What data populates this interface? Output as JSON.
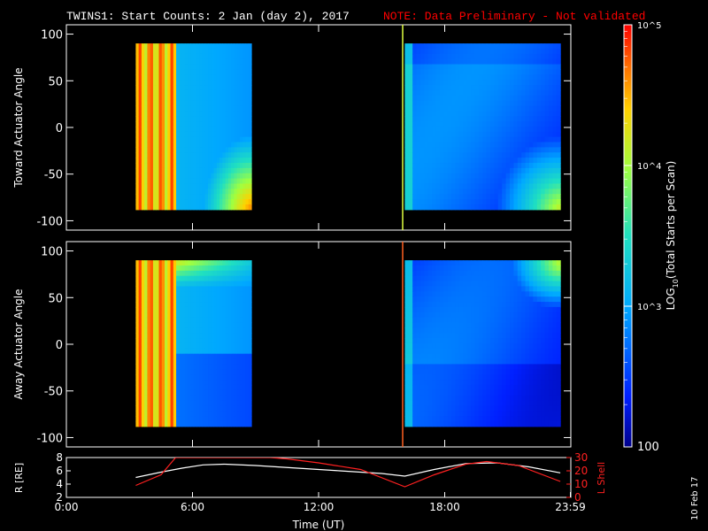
{
  "title": {
    "main": "TWINS1: Start Counts:  2 Jan (day   2), 2017",
    "note": "NOTE: Data Preliminary - Not validated",
    "note_color": "#ff0000"
  },
  "date_stamp": "10 Feb 17",
  "chart_data": [
    {
      "type": "heatmap",
      "ylabel": "Toward Actuator Angle",
      "ylim": [
        -110,
        110
      ],
      "yticks": [
        "100",
        "50",
        "0",
        "-50",
        "-100"
      ],
      "xlim": [
        0,
        24
      ],
      "data_blocks": [
        {
          "x_range": [
            3.3,
            8.8
          ],
          "y_range": [
            -88,
            90
          ],
          "pattern": "early_saturated"
        },
        {
          "x_range": [
            16.1,
            23.5
          ],
          "y_range": [
            -88,
            90
          ],
          "pattern": "late_low"
        }
      ],
      "marker_time": 16.0
    },
    {
      "type": "heatmap",
      "ylabel": "Away Actuator Angle",
      "ylim": [
        -110,
        110
      ],
      "yticks": [
        "100",
        "50",
        "0",
        "-50",
        "-100"
      ],
      "xlim": [
        0,
        24
      ],
      "data_blocks": [
        {
          "x_range": [
            3.3,
            8.8
          ],
          "y_range": [
            -88,
            90
          ],
          "pattern": "early_saturated"
        },
        {
          "x_range": [
            16.1,
            23.5
          ],
          "y_range": [
            -88,
            90
          ],
          "pattern": "late_low"
        }
      ],
      "marker_time": 16.0
    },
    {
      "type": "line",
      "ylabel_left": "R [RE]",
      "ylabel_right": "L Shell",
      "ylabel_right_color": "#ff2020",
      "xlabel": "Time (UT)",
      "xticks": [
        "0:00",
        "6:00",
        "12:00",
        "18:00",
        "23:59"
      ],
      "xlim": [
        0,
        24
      ],
      "ylim_left": [
        2,
        8
      ],
      "ylim_right": [
        0,
        30
      ],
      "yticks_left": [
        "8",
        "6",
        "4",
        "2"
      ],
      "yticks_right": [
        "30",
        "20",
        "10",
        "0"
      ],
      "series": [
        {
          "name": "R",
          "color": "#ffffff",
          "x": [
            3.3,
            4.5,
            5.5,
            6.5,
            7.5,
            9,
            11,
            13,
            15,
            16.1,
            17.5,
            19,
            20.5,
            22,
            23.5
          ],
          "y": [
            5.0,
            5.8,
            6.4,
            6.9,
            7.0,
            6.8,
            6.4,
            6.0,
            5.6,
            5.2,
            6.2,
            7.1,
            7.2,
            6.6,
            5.7
          ]
        },
        {
          "name": "L Shell",
          "color": "#ff2020",
          "x": [
            3.3,
            4.5,
            5.2,
            9.7,
            10.5,
            12,
            14,
            16.1,
            17.5,
            19,
            20,
            21.5,
            23.5
          ],
          "y": [
            9,
            17,
            30,
            30,
            29,
            26,
            21,
            8,
            17,
            25,
            27,
            24,
            12
          ]
        }
      ]
    }
  ],
  "colorbar": {
    "label": "LOG10(Total Starts per Scan)",
    "tick_labels": [
      "10^5",
      "10^4",
      "10^3",
      "100"
    ],
    "range_log": [
      2,
      5
    ]
  }
}
